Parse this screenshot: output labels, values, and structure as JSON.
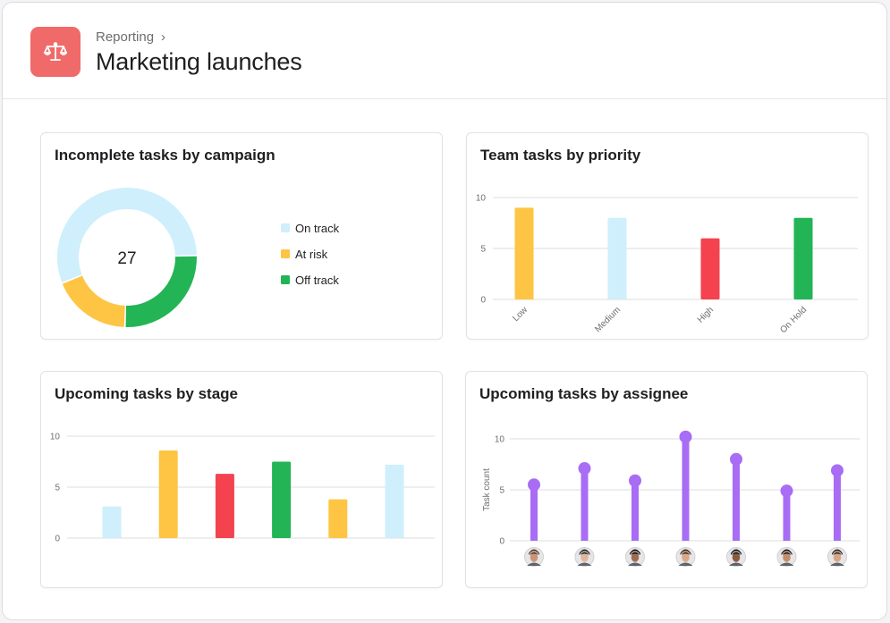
{
  "header": {
    "breadcrumb": "Reporting",
    "title": "Marketing launches",
    "icon": "scale-icon",
    "icon_bg": "#f06a6a"
  },
  "colors": {
    "on_track": "#cfeffc",
    "at_risk": "#fdc543",
    "off_track": "#22b455",
    "high": "#f4424f",
    "assignee": "#a86cf5",
    "grid": "#dcdcdf"
  },
  "cards": {
    "campaign": {
      "title": "Incomplete tasks by campaign",
      "chart_data": {
        "type": "pie",
        "center_label": "27",
        "slices": [
          {
            "label": "On track",
            "value": 15,
            "color": "#cfeffc"
          },
          {
            "label": "Off track",
            "value": 7,
            "color": "#22b455"
          },
          {
            "label": "At risk",
            "value": 5,
            "color": "#fdc543"
          }
        ],
        "legend": [
          "On track",
          "At risk",
          "Off track"
        ],
        "legend_colors": [
          "#cfeffc",
          "#fdc543",
          "#22b455"
        ],
        "legend_position": "right"
      }
    },
    "priority": {
      "title": "Team tasks by priority",
      "chart_data": {
        "type": "bar",
        "categories": [
          "Low",
          "Medium",
          "High",
          "On Hold"
        ],
        "values": [
          9,
          8,
          6,
          8
        ],
        "colors": [
          "#fdc543",
          "#cfeffc",
          "#f4424f",
          "#22b455"
        ],
        "yticks": [
          0,
          5,
          10
        ],
        "ylim": [
          0,
          10
        ],
        "grid": true
      }
    },
    "stage": {
      "title": "Upcoming tasks by stage",
      "chart_data": {
        "type": "bar",
        "values": [
          3.1,
          8.6,
          6.3,
          7.5,
          3.8,
          7.2
        ],
        "colors": [
          "#cfeffc",
          "#fdc543",
          "#f4424f",
          "#22b455",
          "#fdc543",
          "#cfeffc"
        ],
        "yticks": [
          0,
          5,
          10
        ],
        "ylim": [
          0,
          10
        ],
        "grid": true
      }
    },
    "assignee": {
      "title": "Upcoming tasks by assignee",
      "chart_data": {
        "type": "bar",
        "ylabel": "Task count",
        "values": [
          5.5,
          7.1,
          5.9,
          10.2,
          8,
          4.9,
          6.9
        ],
        "color": "#a86cf5",
        "yticks": [
          0,
          5,
          10
        ],
        "ylim": [
          0,
          10
        ],
        "grid": true,
        "avatars": [
          "avatar-1",
          "avatar-2",
          "avatar-3",
          "avatar-4",
          "avatar-5",
          "avatar-6",
          "avatar-7"
        ],
        "avatar_tones": [
          [
            "#c99679",
            "#5a3e2b"
          ],
          [
            "#e0b79c",
            "#2b2b2b"
          ],
          [
            "#a06c50",
            "#1d1512"
          ],
          [
            "#d9a987",
            "#4a2c1c"
          ],
          [
            "#8c5a3c",
            "#1b1b1b"
          ],
          [
            "#c48e6c",
            "#2a1a12"
          ],
          [
            "#d7a585",
            "#3b2a20"
          ]
        ]
      }
    }
  }
}
